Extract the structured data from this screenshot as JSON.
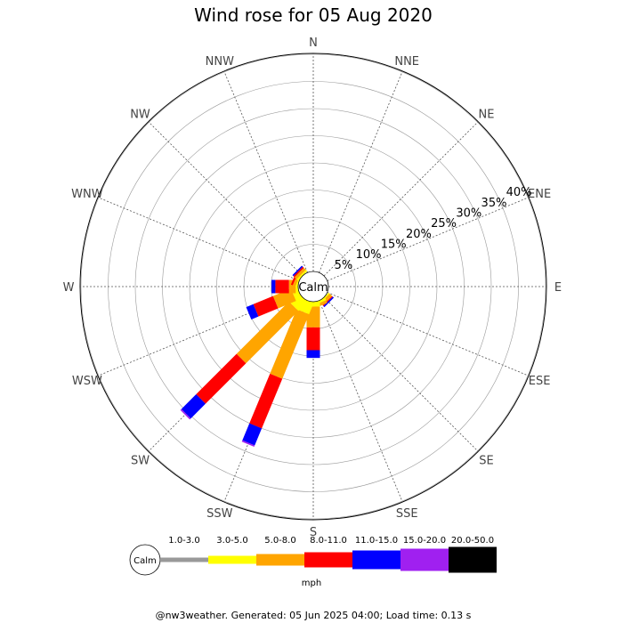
{
  "chart_data": {
    "type": "wind-rose",
    "title": "Wind rose for 05 Aug 2020",
    "directions": [
      "N",
      "NNE",
      "NE",
      "ENE",
      "E",
      "ESE",
      "SE",
      "SSE",
      "S",
      "SSW",
      "SW",
      "WSW",
      "W",
      "WNW",
      "NW",
      "NNW"
    ],
    "ring_labels": [
      "5%",
      "10%",
      "15%",
      "20%",
      "25%",
      "30%",
      "35%",
      "40%"
    ],
    "rmax": 45,
    "calm_label": "Calm",
    "units": "mph",
    "speed_bins": [
      {
        "label": "1.0-3.0",
        "color": "#999999"
      },
      {
        "label": "3.0-5.0",
        "color": "#ffff00"
      },
      {
        "label": "5.0-8.0",
        "color": "#ffa500"
      },
      {
        "label": "8.0-11.0",
        "color": "#ff0000"
      },
      {
        "label": "11.0-15.0",
        "color": "#0000ff"
      },
      {
        "label": "15.0-20.0",
        "color": "#a020f0"
      },
      {
        "label": "20.0-50.0",
        "color": "#000000"
      }
    ],
    "calm_percent": 3.4,
    "series": [
      {
        "direction": "N",
        "values": [
          0,
          0,
          0,
          0,
          0,
          0,
          0
        ]
      },
      {
        "direction": "NNE",
        "values": [
          0,
          0,
          0,
          0,
          0,
          0,
          0
        ]
      },
      {
        "direction": "NE",
        "values": [
          0,
          0,
          0,
          0,
          0,
          0,
          0
        ]
      },
      {
        "direction": "ENE",
        "values": [
          0,
          0,
          0,
          0,
          0,
          0,
          0
        ]
      },
      {
        "direction": "E",
        "values": [
          0,
          0,
          0,
          0,
          0,
          0,
          0
        ]
      },
      {
        "direction": "ESE",
        "values": [
          0,
          0,
          0,
          0,
          0,
          0,
          0
        ]
      },
      {
        "direction": "SE",
        "values": [
          0,
          0.3,
          0.7,
          0.2,
          0.3,
          0,
          0
        ]
      },
      {
        "direction": "SSE",
        "values": [
          0,
          0.5,
          0.6,
          0,
          0,
          0,
          0
        ]
      },
      {
        "direction": "S",
        "values": [
          0,
          1.0,
          4.3,
          4.7,
          1.6,
          0,
          0
        ]
      },
      {
        "direction": "SSW",
        "values": [
          0,
          2.5,
          14.4,
          11.1,
          3.8,
          0.3,
          0
        ]
      },
      {
        "direction": "SW",
        "values": [
          0,
          2.6,
          15.3,
          11.8,
          4.3,
          0.3,
          0
        ]
      },
      {
        "direction": "WSW",
        "values": [
          0,
          1.3,
          4.0,
          4.4,
          1.6,
          0,
          0
        ]
      },
      {
        "direction": "W",
        "values": [
          0,
          0.5,
          1.4,
          2.8,
          0.8,
          0,
          0
        ]
      },
      {
        "direction": "WNW",
        "values": [
          0,
          0.3,
          0.6,
          0.4,
          0,
          0,
          0
        ]
      },
      {
        "direction": "NW",
        "values": [
          0,
          0.4,
          0.6,
          0.3,
          0.3,
          0,
          0
        ]
      },
      {
        "direction": "NNW",
        "values": [
          0,
          0,
          0,
          0,
          0,
          0,
          0
        ]
      }
    ]
  },
  "footer": "@nw3weather. Generated: 05 Jun 2025 04:00; Load time: 0.13 s"
}
